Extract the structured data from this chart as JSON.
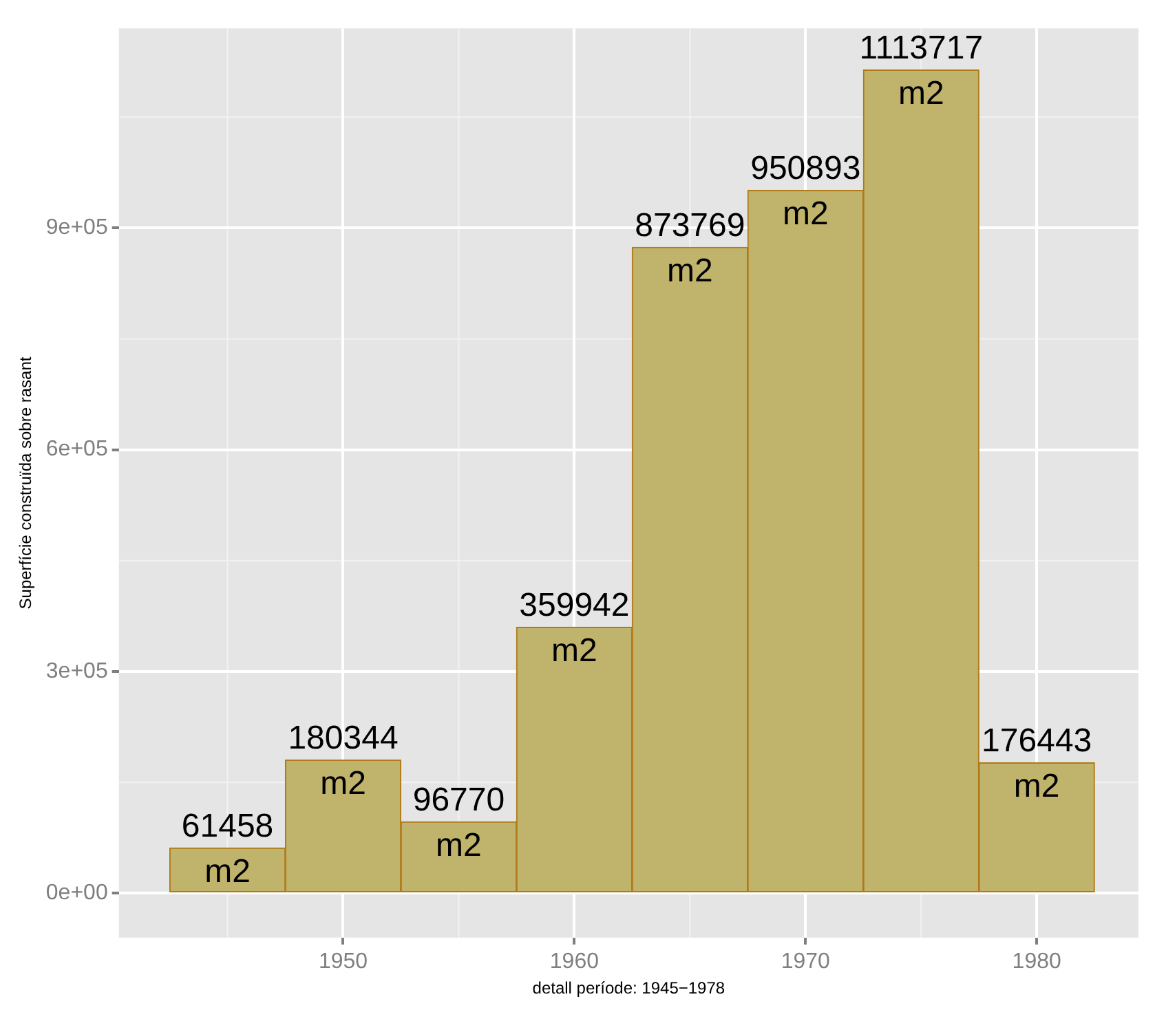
{
  "chart_data": {
    "type": "histogram",
    "xlabel": "detall període: 1945−1978",
    "ylabel": "Superfície construïda sobre rasant",
    "bins": [
      1942.5,
      1947.5,
      1952.5,
      1957.5,
      1962.5,
      1967.5,
      1972.5,
      1977.5,
      1982.5
    ],
    "values": [
      61458,
      180344,
      96770,
      359942,
      873769,
      950893,
      1113717,
      176443
    ],
    "value_labels": [
      "61458 m2",
      "180344 m2",
      "96770 m2",
      "359942 m2",
      "873769 m2",
      "950893 m2",
      "1113717 m2",
      "176443 m2"
    ],
    "color": "#c0b36c",
    "xlim": [
      1940.3,
      1984.4
    ],
    "xticks": [
      1950,
      1960,
      1970,
      1980
    ],
    "ylim": [
      -60000,
      1170000
    ],
    "yticks": [
      {
        "value": 0,
        "label": "0e+00"
      },
      {
        "value": 300000,
        "label": "3e+05"
      },
      {
        "value": 600000,
        "label": "6e+05"
      },
      {
        "value": 900000,
        "label": "9e+05"
      }
    ],
    "grid": true
  }
}
